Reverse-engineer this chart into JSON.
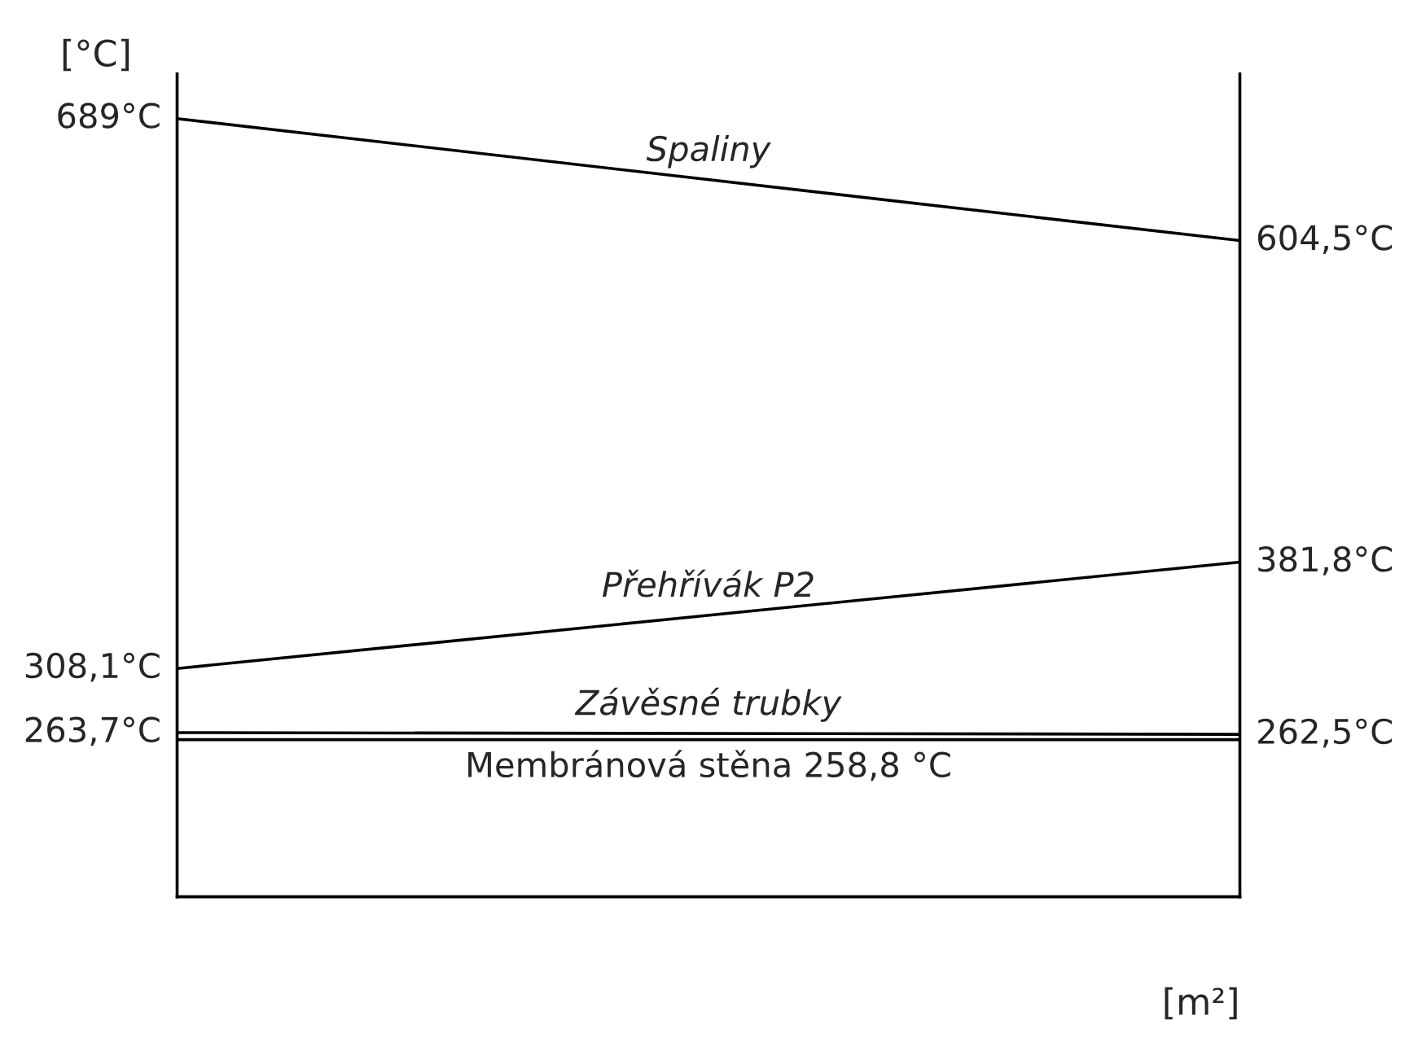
{
  "chart_data": {
    "type": "line",
    "xlabel": "[m²]",
    "ylabel": "[°C]",
    "categories": [
      null,
      null
    ],
    "ylim": [
      150,
      720
    ],
    "tick_labels": false,
    "legend": false,
    "marker": "none",
    "line_style": "solid",
    "series": [
      {
        "name": "Spaliny",
        "color": "#000000",
        "values": [
          689,
          604.5
        ],
        "value_labels": [
          "689°C",
          "604,5°C"
        ]
      },
      {
        "name": "Přehřívák P2",
        "color": "#000000",
        "values": [
          308.1,
          381.8
        ],
        "value_labels": [
          "308,1°C",
          "381,8°C"
        ]
      },
      {
        "name": "Závěsné trubky",
        "color": "#000000",
        "values": [
          263.7,
          262.5
        ],
        "value_labels": [
          "263,7°C",
          "262,5°C"
        ]
      },
      {
        "name": "Membránová stěna 258,8 °C",
        "color": "#000000",
        "values": [
          258.8,
          258.8
        ],
        "value_labels": [
          null,
          null
        ]
      }
    ]
  }
}
